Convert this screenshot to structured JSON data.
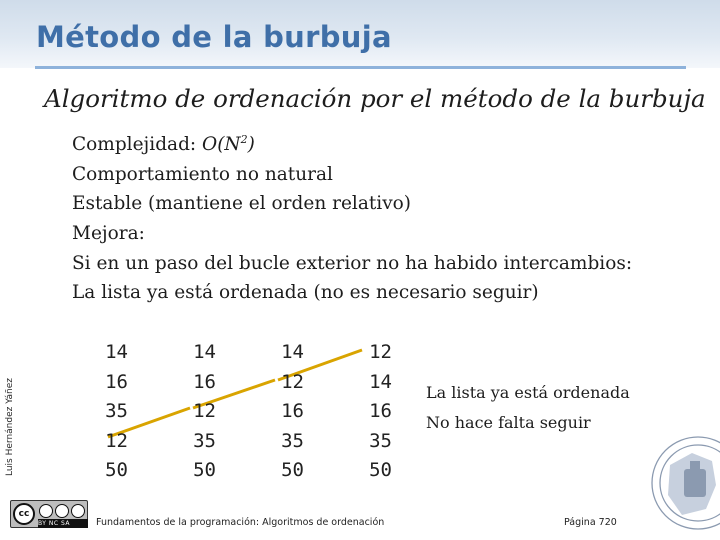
{
  "title": "Método de la burbuja",
  "subtitle": "Algoritmo de ordenación por el método de la burbuja",
  "bullets": {
    "complexity_label": "Complejidad: ",
    "complexity_o": "O(N",
    "complexity_exp": "2",
    "complexity_close": ")",
    "b2": "Comportamiento no natural",
    "b3": "Estable (mantiene el orden relativo)",
    "b4": "Mejora:",
    "b5": "Si en un paso del bucle exterior no ha habido intercambios:",
    "b6": "La lista ya está ordenada (no es necesario seguir)"
  },
  "columns": [
    [
      "14",
      "16",
      "35",
      "12",
      "50"
    ],
    [
      "14",
      "16",
      "12",
      "35",
      "50"
    ],
    [
      "14",
      "12",
      "16",
      "35",
      "50"
    ],
    [
      "12",
      "14",
      "16",
      "35",
      "50"
    ]
  ],
  "note": {
    "line1": "La lista ya está ordenada",
    "line2": "No hace falta seguir"
  },
  "author": "Luis Hernández Yáñez",
  "footer": {
    "course": "Fundamentos de la programación: Algoritmos de ordenación",
    "page": "Página 720"
  },
  "license": {
    "cc": "cc",
    "by": "BY",
    "nc": "NC",
    "sa": "SA"
  },
  "colors": {
    "title": "#3f6fa8",
    "rule": "#8eb2db",
    "swap_line": "#d9a400"
  }
}
